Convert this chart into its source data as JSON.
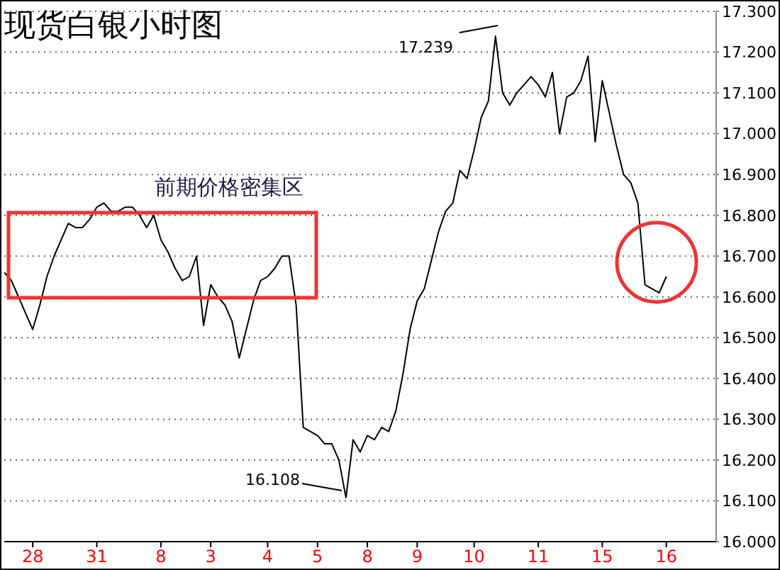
{
  "chart_data": {
    "type": "line",
    "title": "现货白银小时图",
    "categories": [
      null,
      null,
      null,
      null,
      "28",
      null,
      null,
      null,
      null,
      null,
      null,
      null,
      null,
      "31",
      null,
      null,
      null,
      null,
      null,
      null,
      null,
      null,
      "8",
      null,
      null,
      null,
      null,
      null,
      null,
      "3",
      null,
      null,
      null,
      null,
      null,
      null,
      null,
      "4",
      null,
      null,
      null,
      null,
      null,
      null,
      "5",
      null,
      null,
      null,
      null,
      null,
      null,
      "8",
      null,
      null,
      null,
      null,
      null,
      null,
      "9",
      null,
      null,
      null,
      null,
      null,
      null,
      null,
      "10",
      null,
      null,
      null,
      null,
      null,
      null,
      null,
      null,
      "11",
      null,
      null,
      null,
      null,
      null,
      null,
      null,
      null,
      "15",
      null,
      null,
      null,
      null,
      null,
      null,
      null,
      null,
      "16",
      null,
      null,
      null,
      null,
      null,
      null,
      null
    ],
    "series": [
      {
        "color": "#000000",
        "values": [
          16.66,
          16.64,
          16.6,
          16.56,
          16.52,
          16.58,
          16.65,
          16.7,
          16.74,
          16.78,
          16.77,
          16.77,
          16.79,
          16.82,
          16.83,
          16.81,
          16.81,
          16.82,
          16.82,
          16.8,
          16.77,
          16.8,
          16.74,
          16.71,
          16.67,
          16.64,
          16.65,
          16.7,
          16.53,
          16.63,
          16.6,
          16.58,
          16.54,
          16.45,
          16.52,
          16.59,
          16.64,
          16.65,
          16.67,
          16.7,
          16.7,
          16.58,
          16.28,
          16.27,
          16.26,
          16.24,
          16.24,
          16.2,
          16.108,
          16.25,
          16.22,
          16.26,
          16.25,
          16.28,
          16.27,
          16.32,
          16.41,
          16.52,
          16.59,
          16.62,
          16.69,
          16.76,
          16.81,
          16.83,
          16.91,
          16.89,
          16.96,
          17.04,
          17.08,
          17.239,
          17.1,
          17.07,
          17.1,
          17.12,
          17.14,
          17.12,
          17.09,
          17.15,
          17.0,
          17.09,
          17.1,
          17.13,
          17.19,
          16.98,
          17.13,
          17.05,
          16.97,
          16.9,
          16.88,
          16.83,
          16.63,
          16.62,
          16.61,
          16.65,
          null,
          null,
          null,
          null,
          null,
          null,
          null
        ]
      }
    ],
    "ylim": [
      16.0,
      17.3
    ],
    "yticks": [
      {
        "value": 16.0,
        "label": "16.000"
      },
      {
        "value": 16.1,
        "label": "16.100"
      },
      {
        "value": 16.2,
        "label": "16.200"
      },
      {
        "value": 16.3,
        "label": "16.300"
      },
      {
        "value": 16.4,
        "label": "16.400"
      },
      {
        "value": 16.5,
        "label": "16.500"
      },
      {
        "value": 16.6,
        "label": "16.600"
      },
      {
        "value": 16.7,
        "label": "16.700"
      },
      {
        "value": 16.8,
        "label": "16.800"
      },
      {
        "value": 16.9,
        "label": "16.900"
      },
      {
        "value": 17.0,
        "label": "17.000"
      },
      {
        "value": 17.1,
        "label": "17.100"
      },
      {
        "value": 17.2,
        "label": "17.200"
      },
      {
        "value": 17.3,
        "label": "17.300"
      }
    ],
    "grid": "y",
    "legend": false,
    "marker": "none",
    "line_style": "solid",
    "annotations": [
      "17.239",
      "16.108",
      "前期价格密集区"
    ]
  }
}
